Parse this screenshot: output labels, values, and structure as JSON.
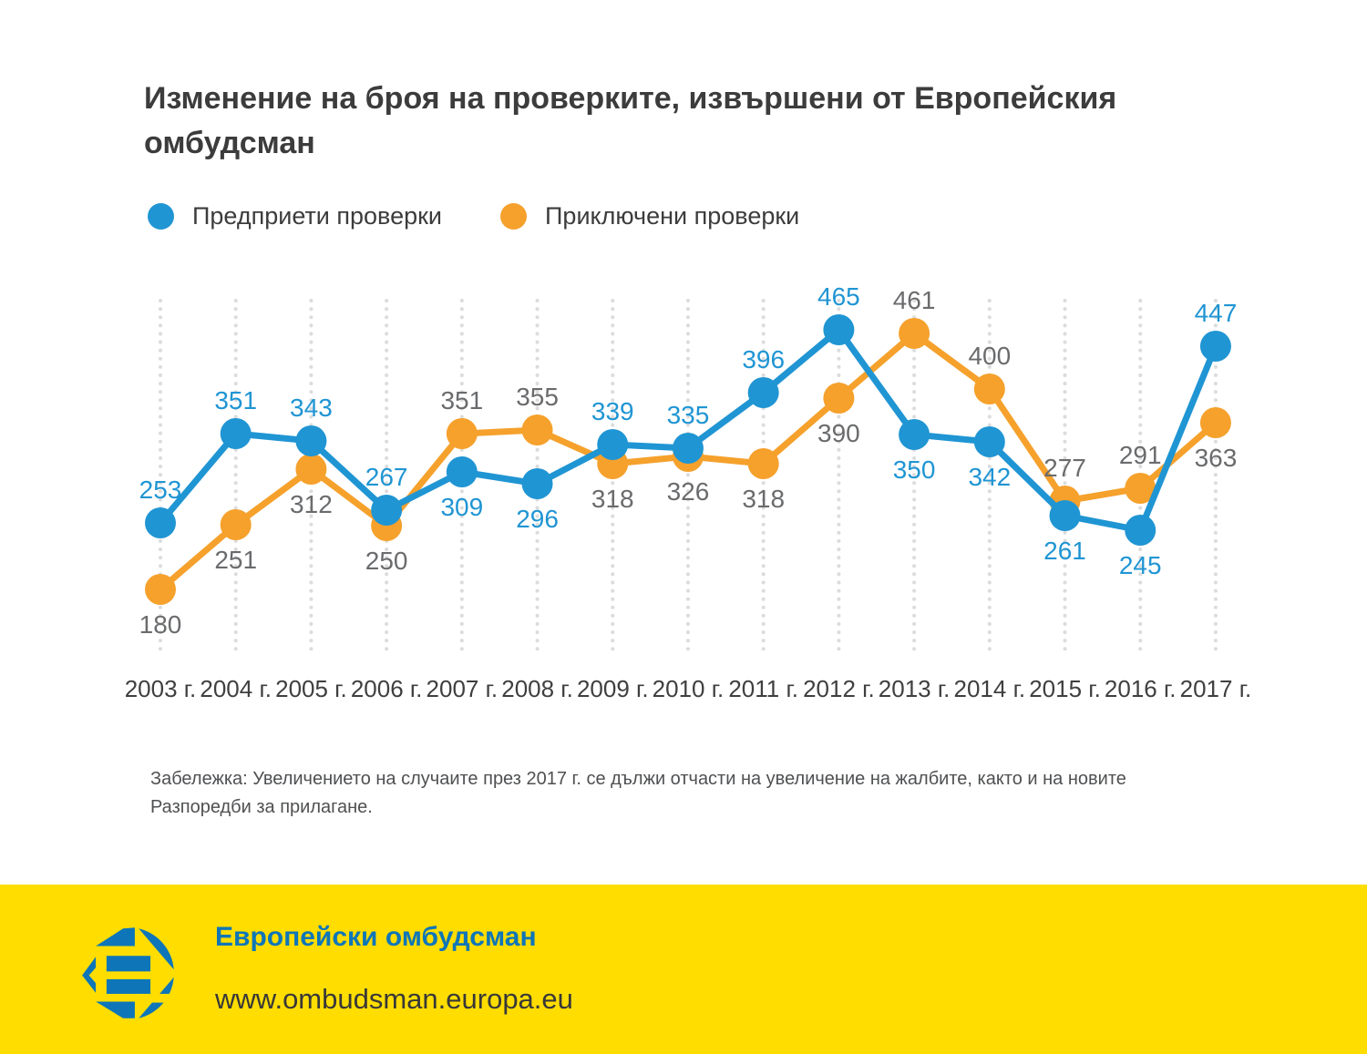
{
  "title": "Изменение на броя на проверките, извършени от Европейския омбудсман",
  "legend": [
    {
      "label": "Предприети проверки",
      "color": "#2095D3"
    },
    {
      "label": "Приключени проверки",
      "color": "#F5A12C"
    }
  ],
  "chart_data": {
    "type": "line",
    "title": "Изменение на броя на проверките, извършени от Европейския омбудсман",
    "categories": [
      "2003 г.",
      "2004 г.",
      "2005 г.",
      "2006 г.",
      "2007 г.",
      "2008 г.",
      "2009 г.",
      "2010 г.",
      "2011 г.",
      "2012 г.",
      "2013 г.",
      "2014 г.",
      "2015 г.",
      "2016 г.",
      "2017 г."
    ],
    "series": [
      {
        "name": "Приключени проверки",
        "color": "#F5A12C",
        "label_color": "#6a6b6d",
        "values": [
          180,
          251,
          312,
          250,
          351,
          355,
          318,
          326,
          318,
          390,
          461,
          400,
          277,
          291,
          363
        ],
        "label_placement": [
          "below",
          "below",
          "below",
          "below",
          "above",
          "above",
          "below",
          "below",
          "below",
          "below",
          "above",
          "above",
          "above",
          "above",
          "below"
        ]
      },
      {
        "name": "Предприети проверки",
        "color": "#2095D3",
        "label_color": "#2095D3",
        "values": [
          253,
          351,
          343,
          267,
          309,
          296,
          339,
          335,
          396,
          465,
          350,
          342,
          261,
          245,
          447
        ],
        "label_placement": [
          "above",
          "above",
          "above",
          "above",
          "below",
          "below",
          "above",
          "above",
          "above",
          "above",
          "below",
          "below",
          "below",
          "below",
          "above"
        ]
      }
    ],
    "ylim": [
      150,
      520
    ],
    "xlabel": "",
    "ylabel": "",
    "grid": "vertical-dotted",
    "gridline_color": "#dcdcdc",
    "legend_position": "top-left",
    "data_labels": true
  },
  "note": "Забележка: Увеличението на случаите през 2017 г. се дължи отчасти на увеличение на жалбите, както и на новите Разпоредби за прилагане.",
  "footer": {
    "org": "Европейски омбудсман",
    "url": "www.ombudsman.europa.eu",
    "background": "#FFDD00",
    "logo": "european-ombudsman-logo",
    "logo_color": "#0e76b8"
  }
}
